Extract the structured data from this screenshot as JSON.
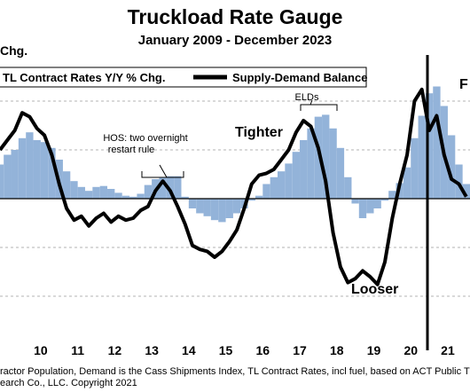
{
  "chart_data": {
    "type": "line",
    "title": "Truckload Rate Gauge",
    "subtitle": "January 2009 - December 2023",
    "ylabel": "Chg.",
    "x_tick_labels": [
      "10",
      "11",
      "12",
      "13",
      "14",
      "15",
      "16",
      "17",
      "18",
      "19",
      "20",
      "21"
    ],
    "xlim": [
      2009.4,
      2022.1
    ],
    "legend": {
      "placement": "top",
      "entries": [
        "TL Contract Rates Y/Y % Chg.",
        "Supply-Demand Balance"
      ]
    },
    "annotations": {
      "hos": [
        "HOS: two overnight",
        "restart rule"
      ],
      "elds": "ELDs",
      "tighter": "Tighter",
      "looser": "Looser",
      "right_cut": "F"
    },
    "vertical_marker_x": 2020.95,
    "series": [
      {
        "name": "TL Contract Rates Y/Y % Chg.",
        "style": "bars",
        "color": "#93b3d9",
        "x": [
          2009.4,
          2009.6,
          2009.8,
          2010.0,
          2010.2,
          2010.4,
          2010.6,
          2010.8,
          2011.0,
          2011.2,
          2011.4,
          2011.6,
          2011.8,
          2012.0,
          2012.2,
          2012.4,
          2012.6,
          2012.8,
          2013.0,
          2013.2,
          2013.4,
          2013.6,
          2013.8,
          2014.0,
          2014.2,
          2014.4,
          2014.6,
          2014.8,
          2015.0,
          2015.2,
          2015.4,
          2015.6,
          2015.8,
          2016.0,
          2016.2,
          2016.4,
          2016.6,
          2016.8,
          2017.0,
          2017.2,
          2017.4,
          2017.6,
          2017.8,
          2018.0,
          2018.2,
          2018.4,
          2018.6,
          2018.8,
          2019.0,
          2019.2,
          2019.4,
          2019.6,
          2019.8,
          2020.0,
          2020.2,
          2020.4,
          2020.6,
          2020.8,
          2021.0,
          2021.2,
          2021.4,
          2021.6,
          2021.8,
          2022.0
        ],
        "values": [
          3.5,
          4.5,
          5.0,
          6.2,
          6.8,
          6.0,
          5.8,
          5.2,
          4.0,
          2.8,
          1.8,
          1.2,
          0.8,
          1.2,
          1.3,
          1.0,
          0.6,
          0.3,
          0.2,
          0.5,
          1.4,
          2.0,
          2.2,
          2.3,
          2.3,
          0.2,
          -1.0,
          -1.5,
          -1.8,
          -2.2,
          -2.4,
          -2.0,
          -1.5,
          -1.0,
          -0.2,
          0.3,
          1.5,
          2.2,
          2.8,
          3.6,
          4.8,
          6.0,
          7.2,
          8.4,
          8.6,
          7.2,
          5.2,
          2.2,
          -0.5,
          -2.0,
          -1.5,
          -1.0,
          -0.2,
          0.8,
          1.6,
          3.2,
          6.2,
          8.5,
          10.8,
          11.5,
          9.5,
          6.5,
          3.5,
          1.5
        ]
      },
      {
        "name": "Supply-Demand Balance",
        "style": "line",
        "color": "#000000",
        "x": [
          2009.4,
          2009.6,
          2009.8,
          2010.0,
          2010.2,
          2010.4,
          2010.6,
          2010.8,
          2011.0,
          2011.2,
          2011.4,
          2011.6,
          2011.8,
          2012.0,
          2012.2,
          2012.4,
          2012.6,
          2012.8,
          2013.0,
          2013.2,
          2013.4,
          2013.6,
          2013.8,
          2014.0,
          2014.2,
          2014.4,
          2014.6,
          2014.8,
          2015.0,
          2015.2,
          2015.4,
          2015.6,
          2015.8,
          2016.0,
          2016.2,
          2016.4,
          2016.6,
          2016.8,
          2017.0,
          2017.2,
          2017.4,
          2017.6,
          2017.8,
          2018.0,
          2018.2,
          2018.4,
          2018.6,
          2018.8,
          2019.0,
          2019.2,
          2019.4,
          2019.6,
          2019.8,
          2020.0,
          2020.2,
          2020.4,
          2020.6,
          2020.8,
          2021.0,
          2021.2,
          2021.4,
          2021.6,
          2021.8,
          2022.0
        ],
        "values": [
          5.0,
          6.0,
          7.0,
          8.8,
          8.4,
          7.2,
          6.5,
          4.5,
          1.5,
          -1.0,
          -2.2,
          -1.8,
          -2.8,
          -2.0,
          -1.5,
          -2.4,
          -1.8,
          -2.2,
          -2.0,
          -1.2,
          -0.8,
          0.8,
          1.8,
          0.8,
          -0.8,
          -2.6,
          -4.8,
          -5.2,
          -5.4,
          -6.0,
          -5.4,
          -4.4,
          -3.2,
          -1.0,
          1.5,
          2.4,
          2.6,
          3.0,
          4.0,
          5.0,
          6.8,
          8.0,
          7.4,
          5.2,
          1.8,
          -3.5,
          -7.0,
          -8.6,
          -8.2,
          -7.4,
          -8.0,
          -8.8,
          -6.5,
          -2.0,
          1.5,
          4.5,
          10.0,
          11.2,
          7.0,
          8.5,
          4.5,
          2.0,
          1.5,
          0.2
        ]
      }
    ]
  },
  "footer": {
    "line1": "ractor Population, Demand is the Cass Shipments Index, TL Contract Rates, incl fuel, based on ACT Public TL Carriers",
    "line2": "earch Co., LLC. Copyright 2021"
  }
}
